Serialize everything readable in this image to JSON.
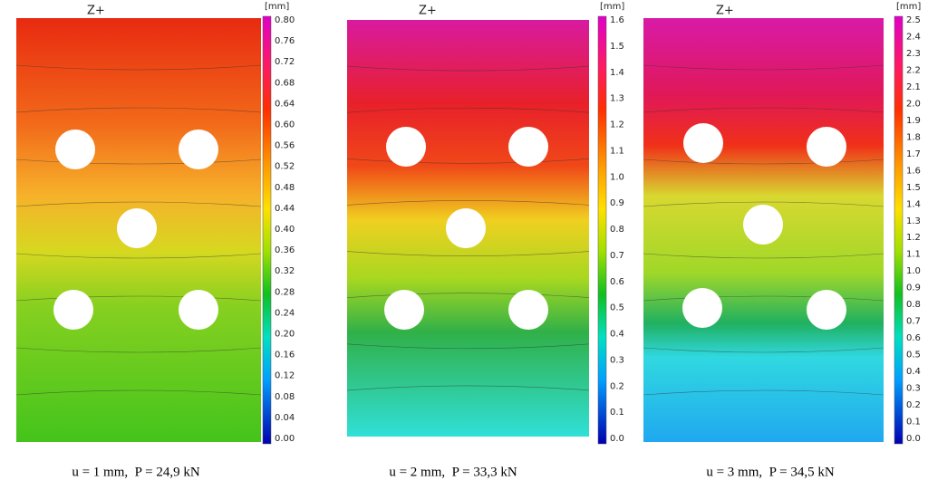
{
  "panels": [
    {
      "view": "Z+",
      "unit": "[mm]",
      "scale": [
        "0.80",
        "0.76",
        "0.72",
        "0.68",
        "0.64",
        "0.60",
        "0.56",
        "0.52",
        "0.48",
        "0.44",
        "0.40",
        "0.36",
        "0.32",
        "0.28",
        "0.24",
        "0.20",
        "0.16",
        "0.12",
        "0.08",
        "0.04",
        "0.00"
      ],
      "caption": "u = 1 mm,  P = 24,9 kN"
    },
    {
      "view": "Z+",
      "unit": "[mm]",
      "scale": [
        "1.6",
        "1.5",
        "1.4",
        "1.3",
        "1.2",
        "1.1",
        "1.0",
        "0.9",
        "0.8",
        "0.7",
        "0.6",
        "0.5",
        "0.4",
        "0.3",
        "0.2",
        "0.1",
        "0.0"
      ],
      "caption": "u = 2 mm,  P = 33,3 kN"
    },
    {
      "view": "Z+",
      "unit": "[mm]",
      "scale": [
        "2.5",
        "2.4",
        "2.3",
        "2.2",
        "2.1",
        "2.0",
        "1.9",
        "1.8",
        "1.7",
        "1.6",
        "1.5",
        "1.4",
        "1.3",
        "1.2",
        "1.1",
        "1.0",
        "0.9",
        "0.8",
        "0.7",
        "0.6",
        "0.5",
        "0.4",
        "0.3",
        "0.2",
        "0.1",
        "0.0"
      ],
      "caption": "u = 3 mm,  P = 34,5 kN"
    }
  ]
}
